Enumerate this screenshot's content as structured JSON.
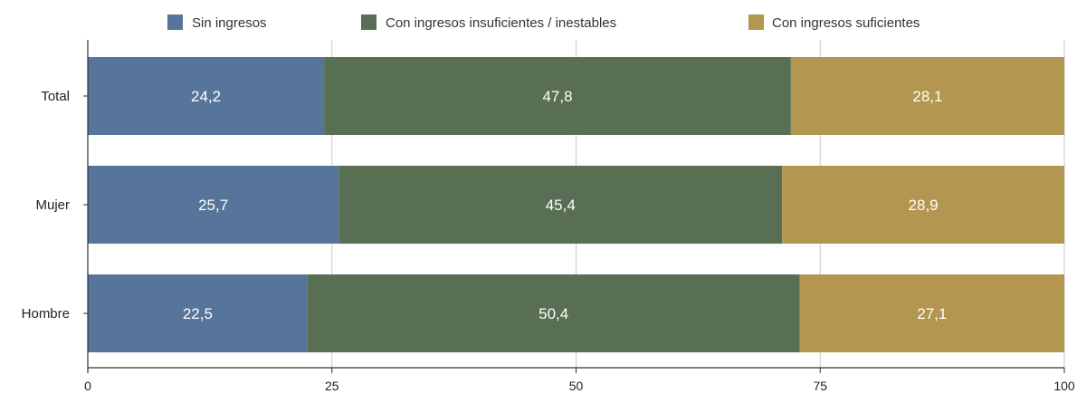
{
  "chart_data": {
    "type": "bar",
    "orientation": "horizontal",
    "stacked": true,
    "categories": [
      "Total",
      "Mujer",
      "Hombre"
    ],
    "series": [
      {
        "name": "Sin ingresos",
        "color": "#57759a",
        "values": [
          24.2,
          25.7,
          22.5
        ],
        "labels": [
          "24,2",
          "25,7",
          "22,5"
        ]
      },
      {
        "name": "Con ingresos insuficientes / inestables",
        "color": "#586f53",
        "values": [
          47.8,
          45.4,
          50.4
        ],
        "labels": [
          "47,8",
          "45,4",
          "50,4"
        ]
      },
      {
        "name": "Con ingresos suficientes",
        "color": "#b3964f",
        "values": [
          28.1,
          28.9,
          27.1
        ],
        "labels": [
          "28,1",
          "28,9",
          "27,1"
        ]
      }
    ],
    "xlim": [
      0,
      100
    ],
    "xticks": [
      0,
      25,
      50,
      75,
      100
    ],
    "xtick_labels": [
      "0",
      "25",
      "50",
      "75",
      "100"
    ],
    "grid": "vertical",
    "legend_position": "top-center"
  }
}
